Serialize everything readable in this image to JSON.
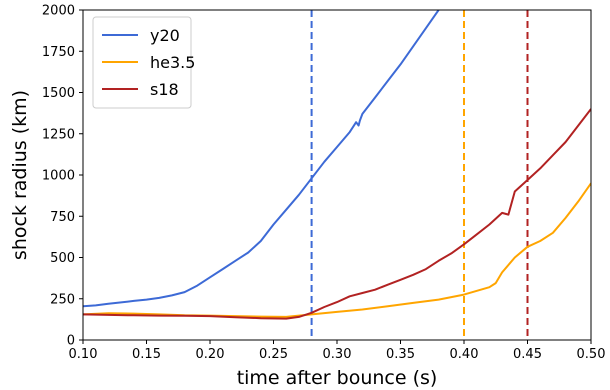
{
  "chart_data": {
    "type": "line",
    "xlabel": "time after bounce (s)",
    "ylabel": "shock radius (km)",
    "xlim": [
      0.1,
      0.5
    ],
    "ylim": [
      0,
      2000
    ],
    "xticks": [
      "0.10",
      "0.15",
      "0.20",
      "0.25",
      "0.30",
      "0.35",
      "0.40",
      "0.45",
      "0.50"
    ],
    "yticks": [
      "0",
      "250",
      "500",
      "750",
      "1000",
      "1250",
      "1500",
      "1750",
      "2000"
    ],
    "grid": false,
    "legend_position": "top-left",
    "series": [
      {
        "name": "y20",
        "color": "#3d6ad6",
        "x": [
          0.1,
          0.11,
          0.12,
          0.13,
          0.14,
          0.15,
          0.16,
          0.17,
          0.18,
          0.19,
          0.2,
          0.21,
          0.22,
          0.23,
          0.24,
          0.25,
          0.26,
          0.27,
          0.28,
          0.29,
          0.3,
          0.31,
          0.315,
          0.317,
          0.318,
          0.32,
          0.33,
          0.34,
          0.35,
          0.36,
          0.37,
          0.38
        ],
        "y": [
          205,
          210,
          220,
          228,
          237,
          245,
          255,
          270,
          290,
          330,
          380,
          430,
          480,
          530,
          600,
          700,
          790,
          880,
          980,
          1080,
          1170,
          1260,
          1320,
          1300,
          1330,
          1370,
          1470,
          1570,
          1670,
          1780,
          1890,
          2000
        ]
      },
      {
        "name": "he3.5",
        "color": "#ffa500",
        "x": [
          0.1,
          0.12,
          0.14,
          0.16,
          0.18,
          0.2,
          0.22,
          0.24,
          0.26,
          0.28,
          0.3,
          0.32,
          0.34,
          0.36,
          0.38,
          0.4,
          0.42,
          0.425,
          0.43,
          0.44,
          0.45,
          0.46,
          0.47,
          0.48,
          0.49,
          0.5
        ],
        "y": [
          155,
          162,
          160,
          155,
          150,
          148,
          145,
          142,
          140,
          155,
          170,
          185,
          205,
          225,
          245,
          275,
          320,
          345,
          410,
          500,
          565,
          600,
          650,
          740,
          840,
          950
        ]
      },
      {
        "name": "s18",
        "color": "#b22222",
        "x": [
          0.1,
          0.12,
          0.14,
          0.16,
          0.18,
          0.2,
          0.22,
          0.24,
          0.26,
          0.27,
          0.28,
          0.29,
          0.3,
          0.31,
          0.32,
          0.33,
          0.34,
          0.35,
          0.36,
          0.37,
          0.38,
          0.39,
          0.4,
          0.41,
          0.42,
          0.43,
          0.435,
          0.44,
          0.45,
          0.46,
          0.47,
          0.48,
          0.49,
          0.5
        ],
        "y": [
          155,
          152,
          150,
          148,
          147,
          145,
          138,
          132,
          130,
          140,
          165,
          200,
          230,
          265,
          285,
          305,
          335,
          365,
          395,
          430,
          480,
          525,
          580,
          640,
          700,
          770,
          760,
          900,
          970,
          1040,
          1120,
          1200,
          1300,
          1400
        ]
      }
    ],
    "vlines": [
      {
        "x": 0.28,
        "color": "#3d6ad6"
      },
      {
        "x": 0.4,
        "color": "#ffa500"
      },
      {
        "x": 0.45,
        "color": "#b22222"
      }
    ]
  }
}
